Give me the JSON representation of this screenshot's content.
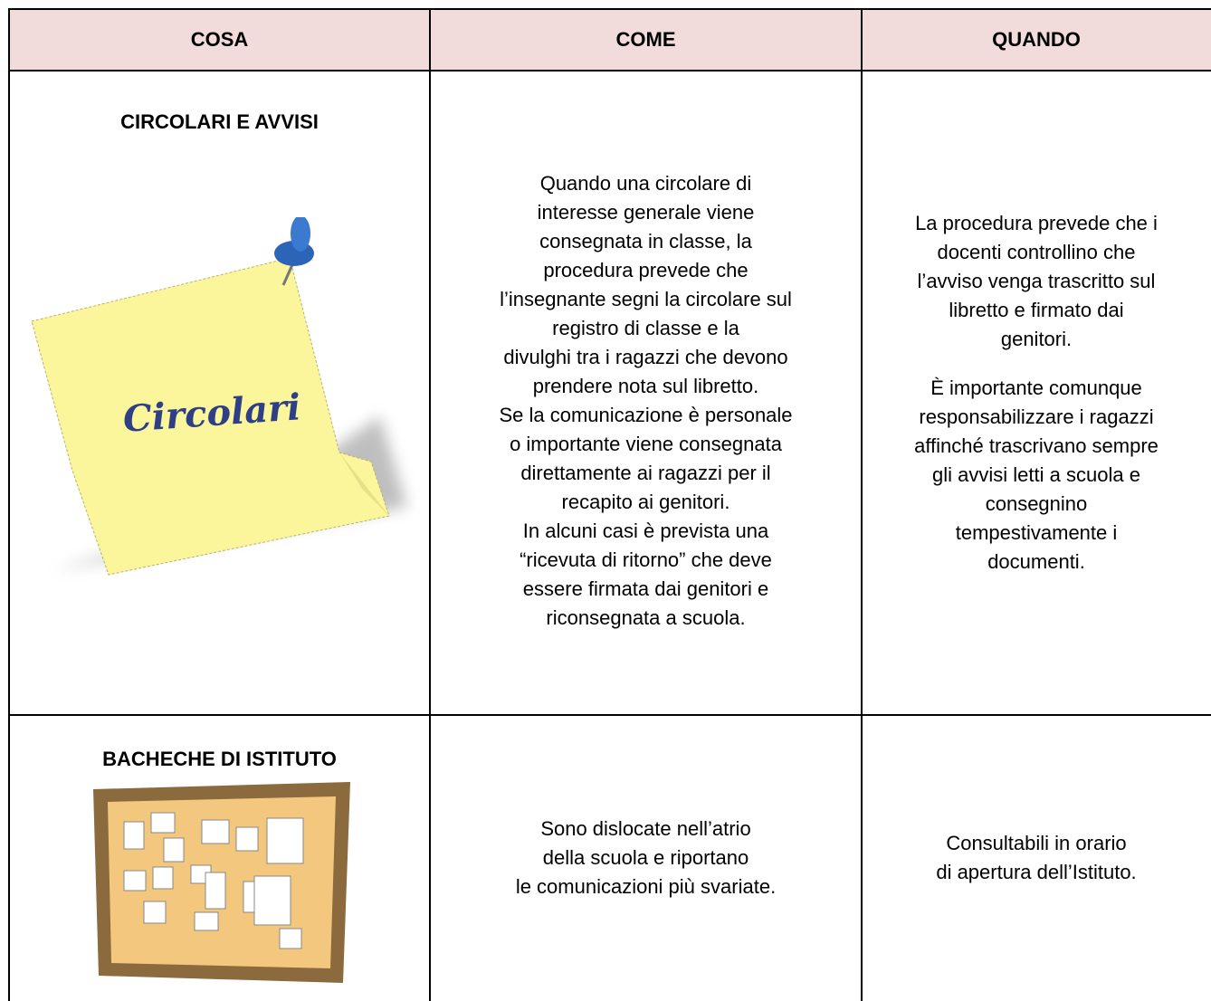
{
  "table": {
    "headers": [
      "COSA",
      "COME",
      "QUANDO"
    ],
    "rows": [
      {
        "title": "CIRCOLARI E AVVISI",
        "image_label": "Circolari",
        "come": [
          "Quando una circolare di",
          "interesse generale viene",
          "consegnata in classe, la",
          "procedura prevede che",
          "l’insegnante segni la circolare sul",
          "registro di classe e la",
          "divulghi tra i ragazzi che devono",
          "prendere nota sul libretto.",
          "Se la comunicazione è personale",
          "o importante viene consegnata",
          "direttamente ai ragazzi per il",
          "recapito ai genitori.",
          "In alcuni casi è prevista una",
          "“ricevuta di ritorno” che deve",
          "essere firmata dai genitori e",
          "riconsegnata a scuola."
        ],
        "quando": [
          [
            "La procedura prevede che i",
            "docenti controllino che",
            "l’avviso venga trascritto sul",
            "libretto e firmato dai",
            "genitori."
          ],
          [
            "È importante comunque",
            "responsabilizzare i ragazzi",
            "affinché trascrivano sempre",
            "gli avvisi letti a scuola e",
            "consegnino",
            "tempestivamente i",
            "documenti."
          ]
        ]
      },
      {
        "title": "BACHECHE DI ISTITUTO",
        "come": [
          "Sono dislocate nell’atrio",
          "della scuola e riportano",
          "le comunicazioni più svariate."
        ],
        "quando": [
          [
            "Consultabili in orario",
            "di apertura dell’Istituto."
          ]
        ]
      }
    ]
  }
}
